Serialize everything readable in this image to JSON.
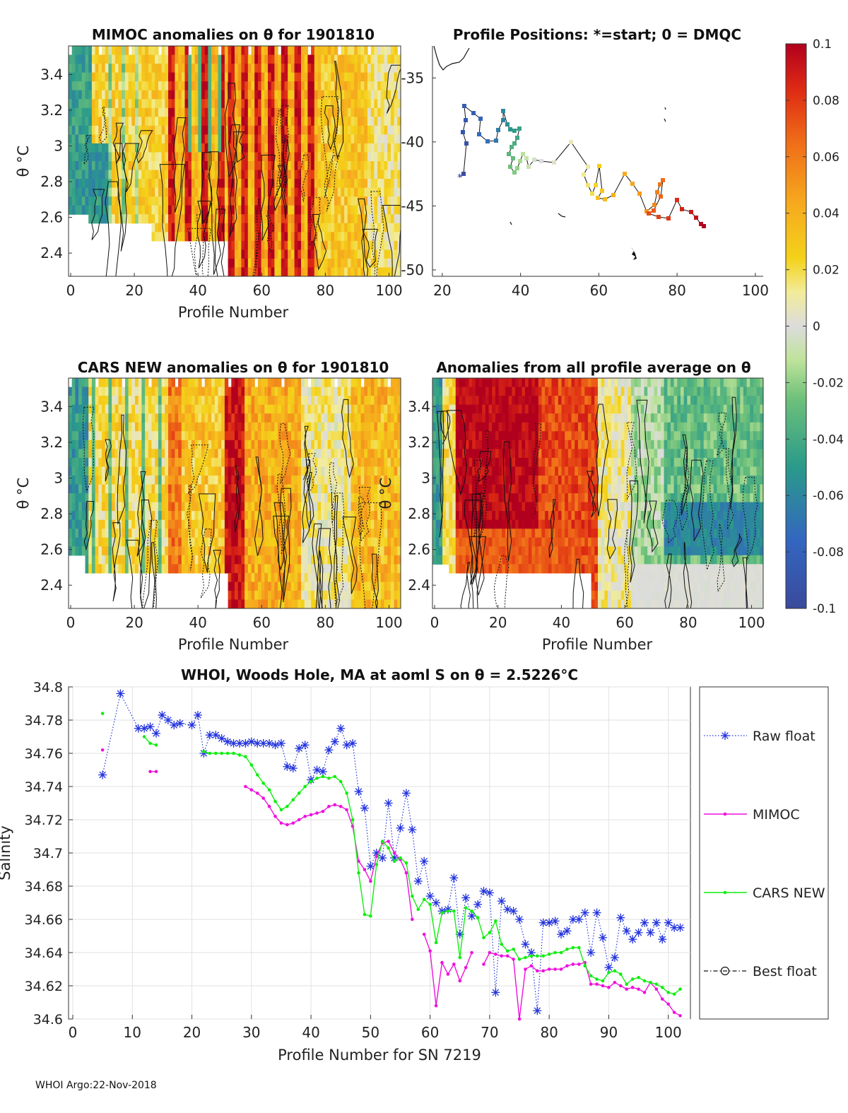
{
  "panels": {
    "mimoc": {
      "title": "MIMOC anomalies on θ  for 1901810",
      "xlabel": "Profile Number",
      "ylabel": "θ °C",
      "xticks": [
        "0",
        "20",
        "40",
        "60",
        "80",
        "100"
      ],
      "yticks": [
        "3.4",
        "3.2",
        "3",
        "2.8",
        "2.6",
        "2.4"
      ]
    },
    "positions": {
      "title": "Profile Positions: *=start; 0 = DMQC",
      "xticks": [
        "20",
        "40",
        "60",
        "80",
        "100"
      ],
      "yticks": [
        "-35",
        "-40",
        "-45",
        "-50"
      ]
    },
    "cars": {
      "title": "CARS NEW anomalies on θ for 1901810",
      "xlabel": "Profile Number",
      "ylabel": "θ °C",
      "xticks": [
        "0",
        "20",
        "40",
        "60",
        "80",
        "100"
      ],
      "yticks": [
        "3.4",
        "3.2",
        "3",
        "2.8",
        "2.6",
        "2.4"
      ]
    },
    "allavg": {
      "title": "Anomalies from all profile average on θ",
      "xlabel": "Profile Number",
      "ylabel": "θ °C",
      "xticks": [
        "0",
        "20",
        "40",
        "60",
        "80",
        "100"
      ],
      "yticks": [
        "3.4",
        "3.2",
        "3",
        "2.8",
        "2.6",
        "2.4"
      ]
    }
  },
  "colorbar": {
    "ticks": [
      "0.1",
      "0.08",
      "0.06",
      "0.04",
      "0.02",
      "0",
      "-0.02",
      "-0.04",
      "-0.06",
      "-0.08",
      "-0.1"
    ],
    "range": [
      -0.1,
      0.1
    ]
  },
  "chart_data": {
    "type": "line",
    "title": "WHOI, Woods Hole, MA at aoml S on θ = 2.5226°C",
    "xlabel": "Profile Number for SN 7219",
    "ylabel": "Salinity",
    "xlim": [
      0,
      103
    ],
    "ylim": [
      34.6,
      34.8
    ],
    "xticks": [
      "0",
      "10",
      "20",
      "30",
      "40",
      "50",
      "60",
      "70",
      "80",
      "90",
      "100"
    ],
    "yticks": [
      "34.8",
      "34.78",
      "34.76",
      "34.74",
      "34.72",
      "34.7",
      "34.68",
      "34.66",
      "34.64",
      "34.62",
      "34.6"
    ],
    "legend_position": "right",
    "series": [
      {
        "name": "Raw float",
        "color": "#2233dd",
        "style": "dotted-star",
        "points": [
          [
            5,
            34.747
          ],
          [
            8,
            34.796
          ],
          [
            11,
            34.775
          ],
          [
            12,
            34.775
          ],
          [
            13,
            34.776
          ],
          [
            14,
            34.772
          ],
          [
            15,
            34.783
          ],
          [
            16,
            34.78
          ],
          [
            17,
            34.777
          ],
          [
            18,
            34.778
          ],
          [
            20,
            34.777
          ],
          [
            21,
            34.783
          ],
          [
            22,
            34.76
          ],
          [
            23,
            34.771
          ],
          [
            24,
            34.771
          ],
          [
            25,
            34.769
          ],
          [
            26,
            34.767
          ],
          [
            27,
            34.766
          ],
          [
            28,
            34.766
          ],
          [
            29,
            34.766
          ],
          [
            30,
            34.767
          ],
          [
            31,
            34.766
          ],
          [
            32,
            34.766
          ],
          [
            33,
            34.766
          ],
          [
            34,
            34.765
          ],
          [
            35,
            34.766
          ],
          [
            36,
            34.752
          ],
          [
            37,
            34.751
          ],
          [
            38,
            34.763
          ],
          [
            39,
            34.765
          ],
          [
            40,
            34.744
          ],
          [
            41,
            34.75
          ],
          [
            42,
            34.749
          ],
          [
            43,
            34.762
          ],
          [
            44,
            34.767
          ],
          [
            45,
            34.775
          ],
          [
            46,
            34.765
          ],
          [
            47,
            34.766
          ],
          [
            48,
            34.737
          ],
          [
            49,
            34.727
          ],
          [
            50,
            34.692
          ],
          [
            51,
            34.7
          ],
          [
            52,
            34.697
          ],
          [
            53,
            34.73
          ],
          [
            54,
            34.697
          ],
          [
            55,
            34.715
          ],
          [
            56,
            34.736
          ],
          [
            57,
            34.714
          ],
          [
            58,
            34.683
          ],
          [
            59,
            34.695
          ],
          [
            60,
            34.674
          ],
          [
            61,
            34.67
          ],
          [
            62,
            34.665
          ],
          [
            63,
            34.666
          ],
          [
            64,
            34.685
          ],
          [
            65,
            34.651
          ],
          [
            66,
            34.673
          ],
          [
            67,
            34.662
          ],
          [
            68,
            34.669
          ],
          [
            69,
            34.677
          ],
          [
            70,
            34.676
          ],
          [
            71,
            34.616
          ],
          [
            72,
            34.671
          ],
          [
            73,
            34.666
          ],
          [
            74,
            34.665
          ],
          [
            75,
            34.66
          ],
          [
            76,
            34.645
          ],
          [
            77,
            34.64
          ],
          [
            78,
            34.605
          ],
          [
            79,
            34.658
          ],
          [
            80,
            34.658
          ],
          [
            81,
            34.659
          ],
          [
            82,
            34.651
          ],
          [
            83,
            34.653
          ],
          [
            84,
            34.66
          ],
          [
            85,
            34.66
          ],
          [
            86,
            34.664
          ],
          [
            87,
            34.64
          ],
          [
            88,
            34.664
          ],
          [
            89,
            34.649
          ],
          [
            90,
            34.631
          ],
          [
            91,
            34.637
          ],
          [
            92,
            34.661
          ],
          [
            93,
            34.653
          ],
          [
            94,
            34.648
          ],
          [
            95,
            34.652
          ],
          [
            96,
            34.658
          ],
          [
            97,
            34.652
          ],
          [
            98,
            34.658
          ],
          [
            99,
            34.648
          ],
          [
            100,
            34.658
          ],
          [
            101,
            34.655
          ],
          [
            102,
            34.655
          ]
        ]
      },
      {
        "name": "MIMOC",
        "color": "#ee11dd",
        "style": "solid-dot",
        "segments": [
          [
            [
              5,
              34.762
            ]
          ],
          [
            [
              13,
              34.749
            ],
            [
              14,
              34.749
            ]
          ],
          [
            [
              29,
              34.74
            ],
            [
              30,
              34.738
            ],
            [
              31,
              34.736
            ],
            [
              32,
              34.733
            ],
            [
              33,
              34.728
            ],
            [
              34,
              34.722
            ],
            [
              35,
              34.718
            ],
            [
              36,
              34.717
            ],
            [
              37,
              34.718
            ],
            [
              38,
              34.72
            ],
            [
              39,
              34.722
            ],
            [
              40,
              34.723
            ],
            [
              41,
              34.724
            ],
            [
              42,
              34.725
            ],
            [
              43,
              34.728
            ],
            [
              44,
              34.729
            ],
            [
              45,
              34.728
            ],
            [
              46,
              34.726
            ],
            [
              47,
              34.716
            ],
            [
              48,
              34.695
            ],
            [
              49,
              34.69
            ],
            [
              50,
              34.683
            ],
            [
              51,
              34.698
            ],
            [
              52,
              34.706
            ],
            [
              53,
              34.707
            ],
            [
              54,
              34.7
            ],
            [
              55,
              34.696
            ],
            [
              56,
              34.688
            ],
            [
              57,
              34.66
            ]
          ],
          [
            [
              59,
              34.651
            ],
            [
              60,
              34.641
            ],
            [
              61,
              34.608
            ],
            [
              62,
              34.634
            ],
            [
              63,
              34.627
            ],
            [
              64,
              34.633
            ],
            [
              65,
              34.623
            ],
            [
              66,
              34.631
            ],
            [
              67,
              34.64
            ]
          ],
          [
            [
              69,
              34.633
            ],
            [
              70,
              34.64
            ],
            [
              71,
              34.639
            ],
            [
              72,
              34.638
            ],
            [
              73,
              34.638
            ],
            [
              74,
              34.636
            ],
            [
              75,
              34.6
            ],
            [
              76,
              34.63
            ],
            [
              77,
              34.632
            ],
            [
              78,
              34.629
            ],
            [
              79,
              34.629
            ],
            [
              80,
              34.63
            ],
            [
              81,
              34.63
            ],
            [
              82,
              34.63
            ],
            [
              83,
              34.632
            ],
            [
              84,
              34.633
            ],
            [
              85,
              34.633
            ],
            [
              86,
              34.634
            ],
            [
              87,
              34.621
            ],
            [
              88,
              34.621
            ],
            [
              89,
              34.62
            ],
            [
              90,
              34.619
            ],
            [
              91,
              34.622
            ],
            [
              92,
              34.62
            ],
            [
              93,
              34.618
            ],
            [
              94,
              34.619
            ],
            [
              95,
              34.618
            ],
            [
              96,
              34.616
            ],
            [
              97,
              34.622
            ],
            [
              98,
              34.618
            ],
            [
              99,
              34.612
            ],
            [
              100,
              34.609
            ],
            [
              101,
              34.604
            ],
            [
              102,
              34.602
            ]
          ]
        ]
      },
      {
        "name": "CARS NEW",
        "color": "#11ee11",
        "style": "solid-dot",
        "segments": [
          [
            [
              5,
              34.784
            ]
          ],
          [
            [
              12,
              34.77
            ],
            [
              13,
              34.766
            ],
            [
              14,
              34.765
            ]
          ],
          [
            [
              22,
              34.761
            ],
            [
              23,
              34.76
            ],
            [
              24,
              34.76
            ],
            [
              25,
              34.76
            ],
            [
              26,
              34.76
            ],
            [
              27,
              34.76
            ],
            [
              28,
              34.759
            ],
            [
              29,
              34.758
            ],
            [
              30,
              34.753
            ],
            [
              31,
              34.747
            ],
            [
              32,
              34.742
            ],
            [
              33,
              34.738
            ],
            [
              34,
              34.731
            ],
            [
              35,
              34.726
            ],
            [
              36,
              34.728
            ],
            [
              37,
              34.732
            ],
            [
              38,
              34.736
            ],
            [
              39,
              34.74
            ],
            [
              40,
              34.743
            ],
            [
              41,
              34.745
            ],
            [
              42,
              34.746
            ],
            [
              43,
              34.745
            ],
            [
              44,
              34.746
            ],
            [
              45,
              34.743
            ],
            [
              46,
              34.736
            ],
            [
              47,
              34.72
            ],
            [
              48,
              34.688
            ],
            [
              49,
              34.663
            ],
            [
              50,
              34.662
            ],
            [
              51,
              34.693
            ],
            [
              52,
              34.707
            ],
            [
              53,
              34.703
            ],
            [
              54,
              34.695
            ],
            [
              55,
              34.697
            ],
            [
              56,
              34.694
            ],
            [
              57,
              34.674
            ],
            [
              58,
              34.666
            ],
            [
              59,
              34.672
            ],
            [
              60,
              34.669
            ],
            [
              61,
              34.646
            ],
            [
              62,
              34.664
            ],
            [
              63,
              34.665
            ],
            [
              64,
              34.665
            ],
            [
              65,
              34.637
            ],
            [
              66,
              34.667
            ],
            [
              67,
              34.665
            ],
            [
              68,
              34.661
            ],
            [
              69,
              34.649
            ],
            [
              70,
              34.652
            ],
            [
              71,
              34.659
            ],
            [
              72,
              34.645
            ],
            [
              73,
              34.641
            ],
            [
              74,
              34.642
            ],
            [
              75,
              34.636
            ],
            [
              76,
              34.637
            ],
            [
              77,
              34.638
            ],
            [
              78,
              34.638
            ],
            [
              79,
              34.638
            ],
            [
              80,
              34.639
            ],
            [
              81,
              34.64
            ],
            [
              82,
              34.64
            ],
            [
              83,
              34.642
            ],
            [
              84,
              34.643
            ],
            [
              85,
              34.643
            ],
            [
              86,
              34.632
            ],
            [
              87,
              34.626
            ],
            [
              88,
              34.624
            ],
            [
              89,
              34.623
            ],
            [
              90,
              34.628
            ],
            [
              91,
              34.629
            ],
            [
              92,
              34.627
            ],
            [
              93,
              34.621
            ],
            [
              94,
              34.624
            ],
            [
              95,
              34.625
            ],
            [
              96,
              34.623
            ],
            [
              97,
              34.622
            ],
            [
              98,
              34.621
            ],
            [
              99,
              34.619
            ],
            [
              100,
              34.616
            ],
            [
              101,
              34.615
            ],
            [
              102,
              34.618
            ]
          ]
        ]
      },
      {
        "name": "Best float",
        "color": "#111111",
        "style": "dashdot-circle",
        "segments": []
      }
    ]
  },
  "footer": "WHOI Argo:22-Nov-2018"
}
